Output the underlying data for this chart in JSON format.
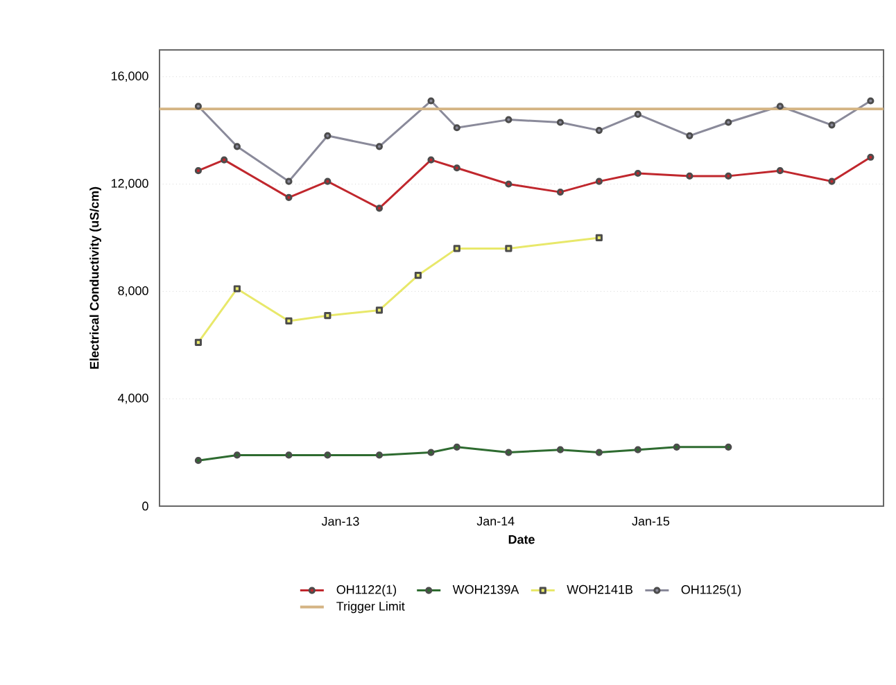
{
  "chart_data": {
    "type": "line",
    "xlabel": "Date",
    "ylabel": "Electrical Conductivity (uS/cm)",
    "xlim": [
      "2011-11",
      "2016-07"
    ],
    "xticks": [
      {
        "value": "2013-01",
        "label": "Jan-13"
      },
      {
        "value": "2014-01",
        "label": "Jan-14"
      },
      {
        "value": "2015-01",
        "label": "Jan-15"
      }
    ],
    "ylim": [
      0,
      17000
    ],
    "yticks": [
      0,
      {
        "value": 4000,
        "label": "4,000"
      },
      {
        "value": 8000,
        "label": "8,000"
      },
      {
        "value": 12000,
        "label": "12,000"
      },
      {
        "value": 16000,
        "label": "16,000"
      }
    ],
    "grid": "y",
    "legend": "bottom",
    "marker": "circle",
    "series": [
      {
        "name": "OH1122(1)",
        "color": "#c0272d",
        "x": [
          "2012-02",
          "2012-04",
          "2012-09",
          "2012-12",
          "2013-04",
          "2013-08",
          "2013-10",
          "2014-02",
          "2014-06",
          "2014-09",
          "2014-12",
          "2015-04",
          "2015-07",
          "2015-11",
          "2016-03",
          "2016-06"
        ],
        "values": [
          12500,
          12900,
          11500,
          12100,
          11100,
          12900,
          12600,
          12000,
          11700,
          12100,
          12400,
          12300,
          12300,
          12500,
          12100,
          13000
        ]
      },
      {
        "name": "WOH2139A",
        "color": "#2e6b30",
        "x": [
          "2012-02",
          "2012-05",
          "2012-09",
          "2012-12",
          "2013-04",
          "2013-08",
          "2013-10",
          "2014-02",
          "2014-06",
          "2014-09",
          "2014-12",
          "2015-03",
          "2015-07"
        ],
        "values": [
          1700,
          1900,
          1900,
          1900,
          1900,
          2000,
          2200,
          2000,
          2100,
          2000,
          2100,
          2200,
          2200
        ]
      },
      {
        "name": "WOH2141B",
        "color": "#e8e86a",
        "marker": "square",
        "x": [
          "2012-02",
          "2012-05",
          "2012-09",
          "2012-12",
          "2013-04",
          "2013-07",
          "2013-10",
          "2014-02",
          "2014-09"
        ],
        "values": [
          6100,
          8100,
          6900,
          7100,
          7300,
          8600,
          9600,
          9600,
          10000
        ]
      },
      {
        "name": "OH1125(1)",
        "color": "#8a8a9a",
        "x": [
          "2012-02",
          "2012-05",
          "2012-09",
          "2012-12",
          "2013-04",
          "2013-08",
          "2013-10",
          "2014-02",
          "2014-06",
          "2014-09",
          "2014-12",
          "2015-04",
          "2015-07",
          "2015-11",
          "2016-03",
          "2016-06"
        ],
        "values": [
          14900,
          13400,
          12100,
          13800,
          13400,
          15100,
          14100,
          14400,
          14300,
          14000,
          14600,
          13800,
          14300,
          14900,
          14200,
          15100
        ]
      }
    ],
    "ref_lines": [
      {
        "axis": "y",
        "value": 14800,
        "label": "Trigger Limit",
        "color": "#d4b483"
      }
    ]
  }
}
